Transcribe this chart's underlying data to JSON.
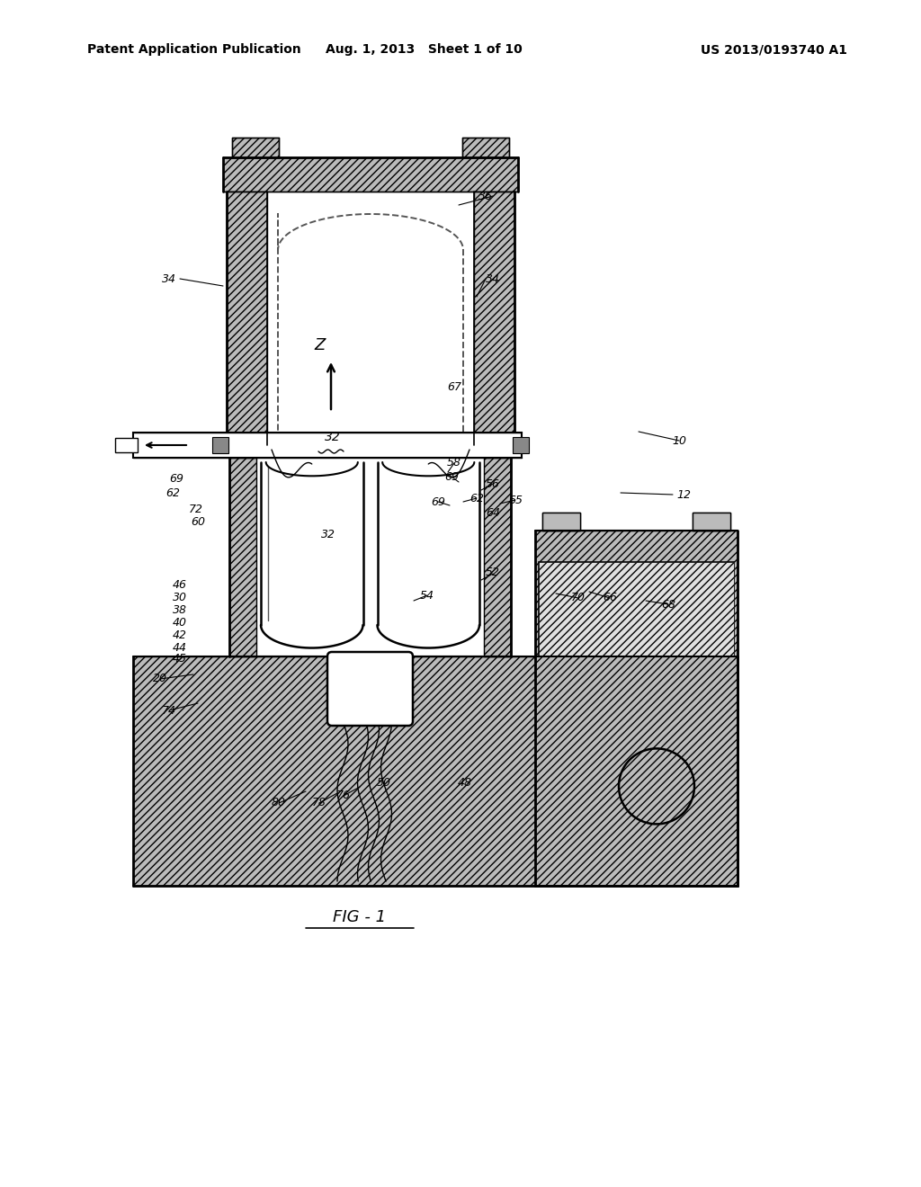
{
  "header_left": "Patent Application Publication",
  "header_mid": "Aug. 1, 2013   Sheet 1 of 10",
  "header_right": "US 2013/0193740 A1",
  "fig_title": "FIG - 1",
  "background": "#ffffff",
  "labels": [
    [
      "10",
      755,
      490
    ],
    [
      "12",
      760,
      550
    ],
    [
      "20",
      178,
      755
    ],
    [
      "30",
      200,
      665
    ],
    [
      "32",
      365,
      595
    ],
    [
      "34",
      188,
      310
    ],
    [
      "34",
      548,
      310
    ],
    [
      "36",
      540,
      218
    ],
    [
      "38",
      200,
      678
    ],
    [
      "40",
      200,
      692
    ],
    [
      "42",
      200,
      706
    ],
    [
      "44",
      200,
      720
    ],
    [
      "45",
      200,
      733
    ],
    [
      "46",
      200,
      651
    ],
    [
      "48",
      517,
      870
    ],
    [
      "50",
      427,
      870
    ],
    [
      "52",
      548,
      636
    ],
    [
      "54",
      475,
      662
    ],
    [
      "56",
      548,
      538
    ],
    [
      "58",
      505,
      515
    ],
    [
      "60",
      220,
      580
    ],
    [
      "62",
      192,
      548
    ],
    [
      "62",
      530,
      554
    ],
    [
      "64",
      548,
      570
    ],
    [
      "65",
      573,
      556
    ],
    [
      "66",
      678,
      665
    ],
    [
      "67",
      505,
      430
    ],
    [
      "68",
      743,
      672
    ],
    [
      "69",
      196,
      532
    ],
    [
      "69",
      502,
      530
    ],
    [
      "69",
      487,
      558
    ],
    [
      "70",
      643,
      665
    ],
    [
      "72",
      218,
      567
    ],
    [
      "74",
      188,
      790
    ],
    [
      "76",
      382,
      885
    ],
    [
      "78",
      355,
      893
    ],
    [
      "80",
      310,
      893
    ]
  ]
}
